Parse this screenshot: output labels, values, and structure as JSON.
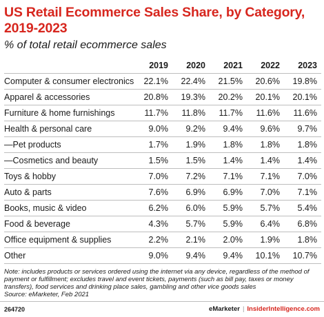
{
  "chart_data": {
    "type": "table",
    "title": "US Retail Ecommerce Sales Share, by Category, 2019-2023",
    "subtitle": "% of total retail ecommerce sales",
    "columns": [
      "2019",
      "2020",
      "2021",
      "2022",
      "2023"
    ],
    "rows": [
      {
        "category": "Computer & consumer electronics",
        "values": [
          "22.1%",
          "22.4%",
          "21.5%",
          "20.6%",
          "19.8%"
        ]
      },
      {
        "category": "Apparel & accessories",
        "values": [
          "20.8%",
          "19.3%",
          "20.2%",
          "20.1%",
          "20.1%"
        ]
      },
      {
        "category": "Furniture & home furnishings",
        "values": [
          "11.7%",
          "11.8%",
          "11.7%",
          "11.6%",
          "11.6%"
        ]
      },
      {
        "category": "Health & personal care",
        "values": [
          "9.0%",
          "9.2%",
          "9.4%",
          "9.6%",
          "9.7%"
        ]
      },
      {
        "category": "—Pet products",
        "values": [
          "1.7%",
          "1.9%",
          "1.8%",
          "1.8%",
          "1.8%"
        ]
      },
      {
        "category": "—Cosmetics and beauty",
        "values": [
          "1.5%",
          "1.5%",
          "1.4%",
          "1.4%",
          "1.4%"
        ]
      },
      {
        "category": "Toys & hobby",
        "values": [
          "7.0%",
          "7.2%",
          "7.1%",
          "7.1%",
          "7.0%"
        ]
      },
      {
        "category": "Auto & parts",
        "values": [
          "7.6%",
          "6.9%",
          "6.9%",
          "7.0%",
          "7.1%"
        ]
      },
      {
        "category": "Books, music & video",
        "values": [
          "6.2%",
          "6.0%",
          "5.9%",
          "5.7%",
          "5.4%"
        ]
      },
      {
        "category": "Food & beverage",
        "values": [
          "4.3%",
          "5.7%",
          "5.9%",
          "6.4%",
          "6.8%"
        ]
      },
      {
        "category": "Office equipment & supplies",
        "values": [
          "2.2%",
          "2.1%",
          "2.0%",
          "1.9%",
          "1.8%"
        ]
      },
      {
        "category": "Other",
        "values": [
          "9.0%",
          "9.4%",
          "9.4%",
          "10.1%",
          "10.7%"
        ]
      }
    ]
  },
  "note": "Note: includes products or services ordered using the internet via any device, regardless of the method of payment or fulfillment; excludes travel and event tickets, payments (such as bill pay, taxes or money transfers), food services and drinking place sales, gambling and other vice goods sales",
  "source": "Source: eMarketer, Feb 2021",
  "footer": {
    "code": "264720",
    "brand_left": "eMarketer",
    "separator": "|",
    "brand_right": "InsiderIntelligence.com"
  },
  "colors": {
    "title": "#d7261e",
    "rule": "#bdbdbd",
    "text": "#1a1a1a"
  }
}
